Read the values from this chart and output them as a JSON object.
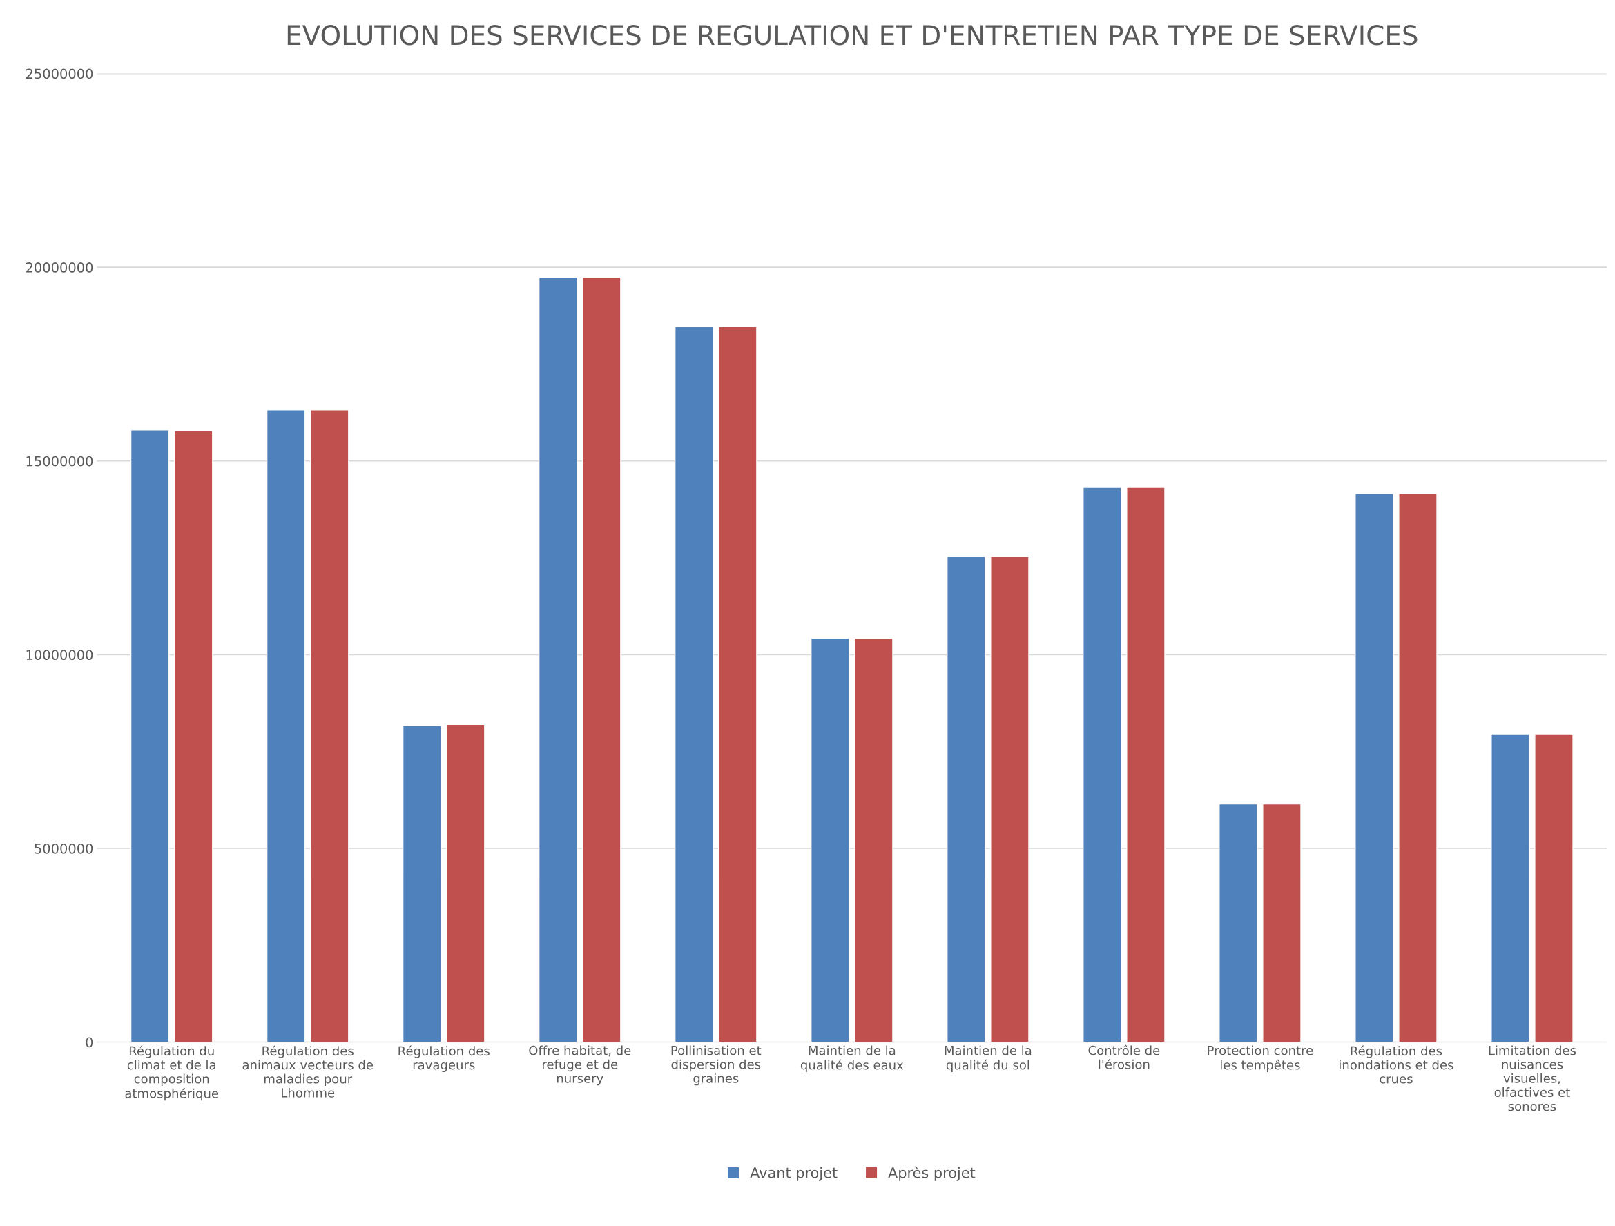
{
  "chart_data": {
    "type": "bar",
    "title": "EVOLUTION DES SERVICES DE REGULATION ET D'ENTRETIEN PAR TYPE DE SERVICES",
    "categories": [
      "Régulation du climat et de la composition atmosphérique",
      "Régulation des animaux vecteurs de maladies pour Lhomme",
      "Régulation des ravageurs",
      "Offre habitat, de refuge et de nursery",
      "Pollinisation et dispersion des graines",
      "Maintien de la qualité des eaux",
      "Maintien de la qualité du sol",
      "Contrôle de l'érosion",
      "Protection contre les tempêtes",
      "Régulation des inondations et des crues",
      "Limitation des nuisances visuelles, olfactives et sonores"
    ],
    "series": [
      {
        "name": "Avant projet",
        "color": "#4f81bd",
        "values": [
          15800000,
          16320000,
          8170000,
          19750000,
          18470000,
          10430000,
          12530000,
          14320000,
          6150000,
          14160000,
          7940000
        ]
      },
      {
        "name": "Après projet",
        "color": "#c0504d",
        "values": [
          15780000,
          16320000,
          8200000,
          19750000,
          18470000,
          10430000,
          12530000,
          14320000,
          6150000,
          14160000,
          7940000
        ]
      }
    ],
    "ylim": [
      0,
      25000000
    ],
    "yticks": [
      0,
      5000000,
      10000000,
      15000000,
      20000000,
      25000000
    ],
    "grid": "y",
    "legend": "bottom"
  }
}
